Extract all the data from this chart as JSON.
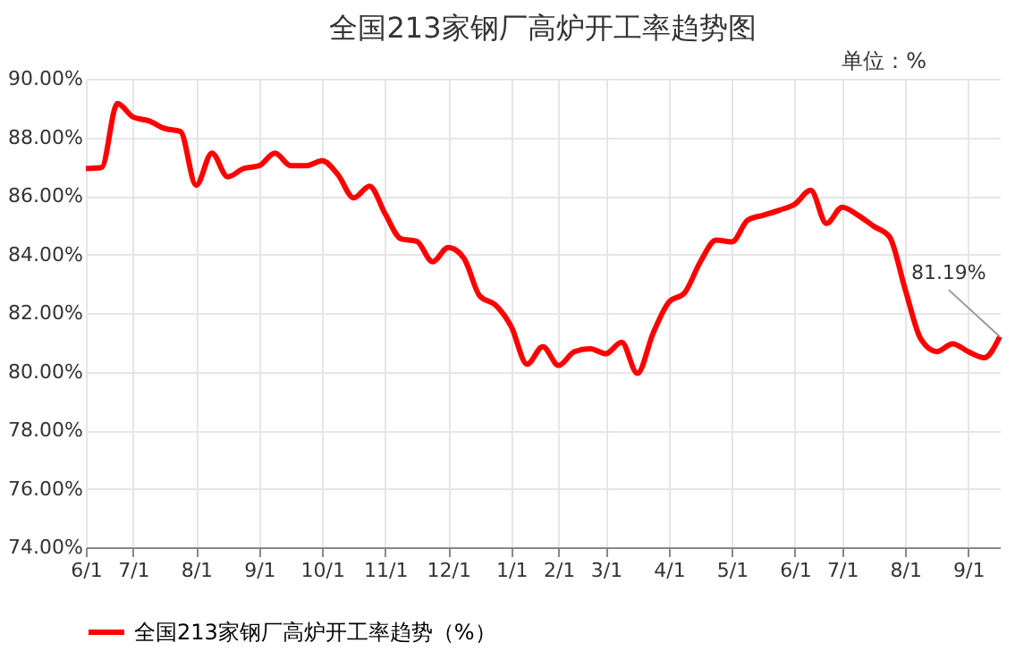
{
  "chart_data": {
    "type": "line",
    "title": "全国213家钢厂高炉开工率趋势图",
    "annotations": [
      "单位：%",
      {
        "text": "81.19%",
        "y": 81.19
      }
    ],
    "categories": [
      "6/1",
      null,
      null,
      "7/1",
      null,
      null,
      null,
      "8/1",
      null,
      null,
      null,
      "9/1",
      null,
      null,
      null,
      "10/1",
      null,
      null,
      null,
      "11/1",
      null,
      null,
      null,
      "12/1",
      null,
      null,
      null,
      "1/1",
      null,
      null,
      "2/1",
      null,
      null,
      "3/1",
      null,
      null,
      null,
      "4/1",
      null,
      null,
      null,
      "5/1",
      null,
      null,
      null,
      "6/1",
      null,
      null,
      "7/1",
      null,
      null,
      null,
      "8/1",
      null,
      null,
      null,
      "9/1",
      null,
      null
    ],
    "series": [
      {
        "name": "全国213家钢厂高炉开工率趋势（%）",
        "color": "#ff0000",
        "values": [
          86.93,
          86.97,
          89.15,
          88.69,
          88.56,
          88.3,
          88.2,
          86.36,
          87.46,
          86.65,
          86.93,
          87.03,
          87.46,
          87.03,
          87.03,
          87.2,
          86.72,
          85.93,
          86.33,
          85.38,
          84.53,
          84.45,
          83.75,
          84.24,
          83.86,
          82.58,
          82.27,
          81.53,
          80.25,
          80.85,
          80.21,
          80.68,
          80.78,
          80.61,
          81.0,
          79.94,
          81.31,
          82.37,
          82.69,
          83.75,
          84.49,
          84.43,
          85.17,
          85.34,
          85.51,
          85.72,
          86.19,
          85.06,
          85.61,
          85.34,
          84.96,
          84.6,
          82.8,
          81.1,
          80.68,
          80.95,
          80.68,
          80.47,
          81.19
        ]
      }
    ],
    "ylim": [
      74,
      90
    ],
    "yticks": [
      {
        "value": 74,
        "label": "74.00%"
      },
      {
        "value": 76,
        "label": "76.00%"
      },
      {
        "value": 78,
        "label": "78.00%"
      },
      {
        "value": 80,
        "label": "80.00%"
      },
      {
        "value": 82,
        "label": "82.00%"
      },
      {
        "value": 84,
        "label": "84.00%"
      },
      {
        "value": 86,
        "label": "86.00%"
      },
      {
        "value": 88,
        "label": "88.00%"
      },
      {
        "value": 90,
        "label": "90.00%"
      }
    ],
    "grid": true,
    "legend": "bottom",
    "marker": "none",
    "line_style": "solid"
  }
}
